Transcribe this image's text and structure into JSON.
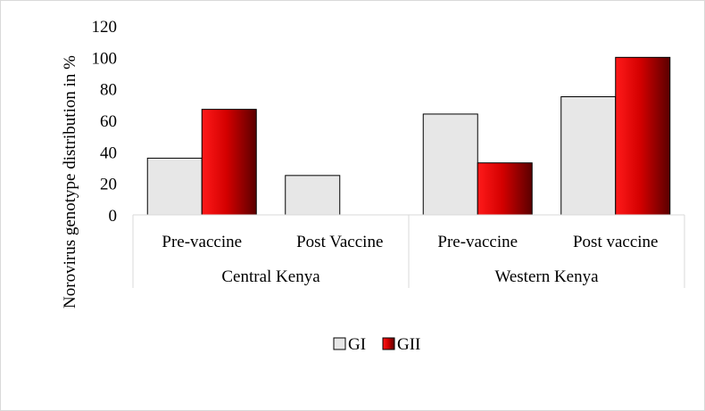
{
  "chart_data": {
    "type": "bar",
    "title": "",
    "ylabel": "Norovirus genotype distribution in %",
    "xlabel": "",
    "ylim": [
      0,
      120
    ],
    "yticks": [
      0,
      20,
      40,
      60,
      80,
      100,
      120
    ],
    "grid": false,
    "legend_position": "bottom",
    "groups": [
      {
        "label": "Central Kenya",
        "categories": [
          "Pre-vaccine",
          "Post Vaccine"
        ]
      },
      {
        "label": "Western Kenya",
        "categories": [
          "Pre-vaccine",
          "Post vaccine"
        ]
      }
    ],
    "series": [
      {
        "name": "GI",
        "values": [
          36,
          25,
          64,
          75
        ],
        "color": "#e7e7e7"
      },
      {
        "name": "GII",
        "values": [
          67,
          0,
          33,
          100
        ],
        "color": "#c00000"
      }
    ]
  }
}
